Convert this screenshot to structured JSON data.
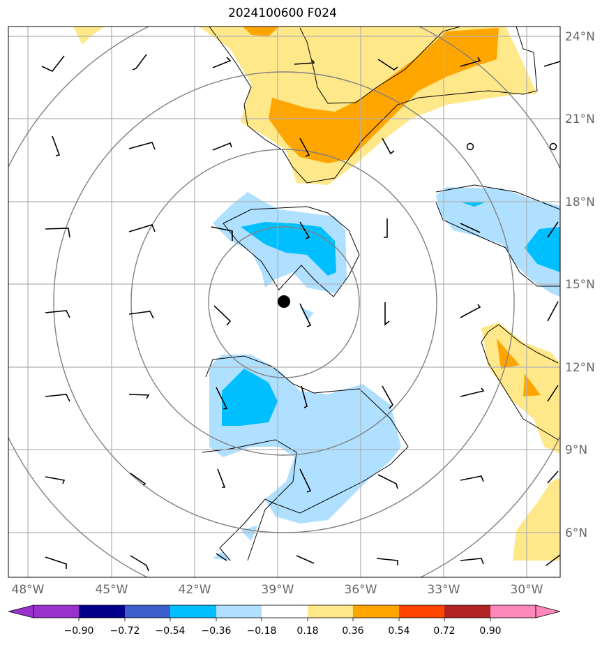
{
  "title": "2024100600 F024",
  "map": {
    "lon_ticks": [
      {
        "value": -48,
        "label": "48°W"
      },
      {
        "value": -45,
        "label": "45°W"
      },
      {
        "value": -42,
        "label": "42°W"
      },
      {
        "value": -39,
        "label": "39°W"
      },
      {
        "value": -36,
        "label": "36°W"
      },
      {
        "value": -33,
        "label": "33°W"
      },
      {
        "value": -30,
        "label": "30°W"
      }
    ],
    "lat_ticks": [
      {
        "value": 6,
        "label": "6°N"
      },
      {
        "value": 9,
        "label": "9°N"
      },
      {
        "value": 12,
        "label": "12°N"
      },
      {
        "value": 15,
        "label": "15°N"
      },
      {
        "value": 18,
        "label": "18°N"
      },
      {
        "value": 21,
        "label": "21°N"
      },
      {
        "value": 24,
        "label": "24°N"
      }
    ],
    "lon_range": [
      -48.7,
      -28.8
    ],
    "lat_range": [
      4.6,
      24.6
    ],
    "storm_center": {
      "lon": -38.7,
      "lat": 14.3
    },
    "range_ring_radii_deg": [
      2.7,
      5.5,
      8.3,
      11.0
    ]
  },
  "colorbar": {
    "ticks": [
      "−0.90",
      "−0.72",
      "−0.54",
      "−0.36",
      "−0.18",
      "0.18",
      "0.36",
      "0.54",
      "0.72",
      "0.90"
    ],
    "colors": [
      "#9932cc",
      "#00008b",
      "#3a5fcd",
      "#00bfff",
      "#b0e0ff",
      "#ffffff",
      "#ffe88a",
      "#ffa500",
      "#ff4500",
      "#b22222",
      "#ff88bb"
    ]
  },
  "colors": {
    "light_blue": "#b0e0ff",
    "blue": "#00bfff",
    "yellow": "#ffe88a",
    "orange": "#ffa500",
    "grid": "#b0b0b0",
    "ring": "#808080"
  },
  "chart_data": {
    "type": "heatmap",
    "title": "2024100600 F024",
    "xlabel": "",
    "ylabel": "",
    "xlim": [
      -48.7,
      -28.8
    ],
    "ylim": [
      4.6,
      24.6
    ],
    "colorbar_levels": [
      -0.9,
      -0.72,
      -0.54,
      -0.36,
      -0.18,
      0.18,
      0.36,
      0.54,
      0.72,
      0.9
    ],
    "grid": true
  }
}
